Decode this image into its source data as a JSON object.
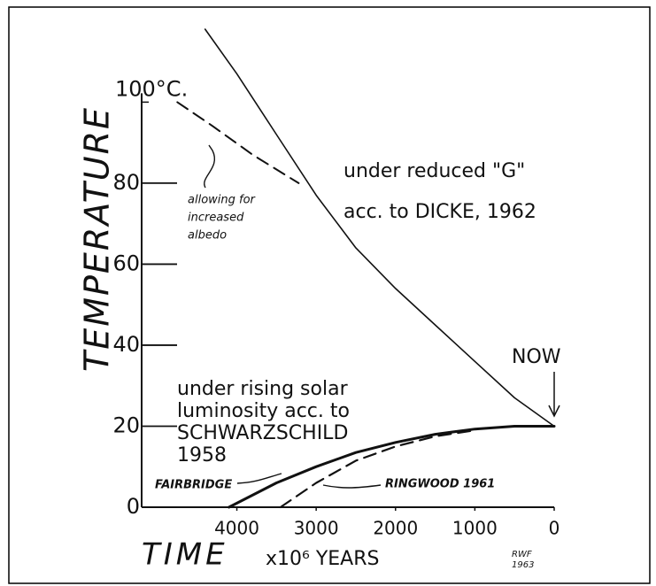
{
  "chart_data": {
    "type": "line",
    "ylabel": "TEMPERATURE",
    "xlabel": "TIME",
    "xunit": "x10⁶ YEARS",
    "xlim": [
      5200,
      0
    ],
    "ylim": [
      0,
      118
    ],
    "xticks": [
      4000,
      3000,
      2000,
      1000,
      0
    ],
    "yticks": [
      0,
      20,
      40,
      60,
      80,
      {
        "value": 100,
        "label": "100°C."
      }
    ],
    "series": [
      {
        "color": "#111",
        "style": "solid",
        "width": 1.6,
        "x": [
          4400,
          4000,
          3500,
          3000,
          2500,
          2000,
          1500,
          1000,
          500,
          0
        ],
        "values": [
          118,
          107,
          92,
          77,
          64,
          54,
          45,
          36,
          27,
          20
        ]
      },
      {
        "color": "#111",
        "style": "dashed",
        "width": 2,
        "x": [
          4750,
          4300,
          3800,
          3220
        ],
        "values": [
          100,
          94,
          87,
          80
        ]
      },
      {
        "color": "#111",
        "style": "solid",
        "width": 3,
        "x": [
          4100,
          3500,
          3000,
          2500,
          2000,
          1500,
          1000,
          500,
          0
        ],
        "values": [
          0,
          6,
          10,
          13.5,
          16,
          18,
          19.3,
          20,
          20
        ]
      },
      {
        "color": "#111",
        "style": "dashed",
        "width": 2.2,
        "x": [
          3450,
          3000,
          2500,
          2000,
          1500,
          1000
        ],
        "values": [
          0,
          6,
          11.5,
          15,
          17.5,
          19
        ]
      }
    ],
    "annotations": {
      "dicke1": "under reduced \"G\"",
      "dicke2": "acc. to DICKE, 1962",
      "albedo1": "allowing for",
      "albedo2": "increased",
      "albedo3": "albedo",
      "now": "NOW",
      "solar1": "under rising solar",
      "solar2": "luminosity acc. to",
      "solar3": "SCHWARZSCHILD",
      "solar4": "1958",
      "fairbridge": "FAIRBRIDGE",
      "ringwood": "RINGWOOD 1961",
      "sig1": "RWF",
      "sig2": "1963"
    }
  }
}
